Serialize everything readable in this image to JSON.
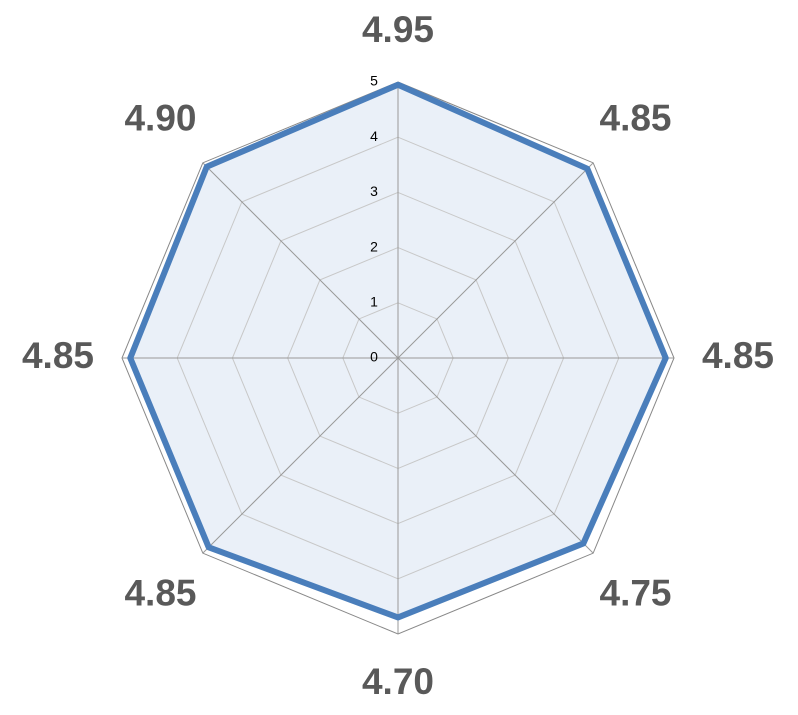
{
  "chart_data": {
    "type": "radar",
    "values": [
      4.95,
      4.85,
      4.85,
      4.75,
      4.7,
      4.85,
      4.85,
      4.9
    ],
    "value_labels": [
      "4.95",
      "4.85",
      "4.85",
      "4.75",
      "4.70",
      "4.85",
      "4.85",
      "4.90"
    ],
    "color": "#4a7ebb",
    "ylim": [
      0,
      5
    ],
    "yticks": [
      0,
      1,
      2,
      3,
      4,
      5
    ],
    "grid": true
  }
}
